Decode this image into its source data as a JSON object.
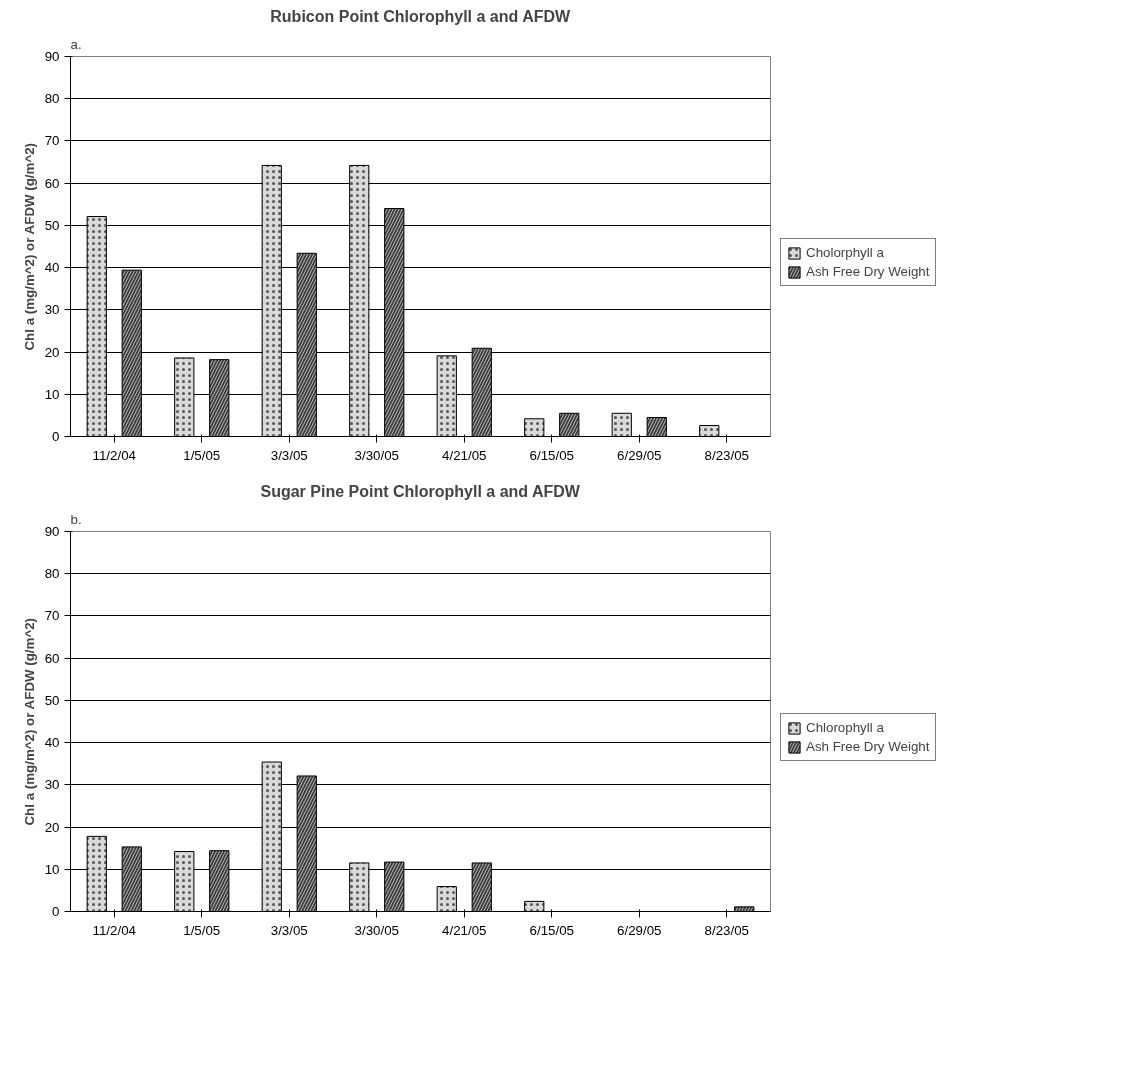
{
  "chart_data": [
    {
      "type": "bar",
      "title": "Rubicon Point Chlorophyll a and AFDW",
      "ylabel": "Chl a (mg/m^2) or AFDW (g/m^2)",
      "annotations": [
        "a."
      ],
      "categories": [
        "11/2/04",
        "1/5/05",
        "3/3/05",
        "3/30/05",
        "4/21/05",
        "6/15/05",
        "6/29/05",
        "8/23/05"
      ],
      "series": [
        {
          "name": "Cholorphyll a",
          "color": "#d9d9d9",
          "values": [
            52.1,
            18.6,
            64.2,
            64.2,
            19.1,
            4.2,
            5.5,
            2.6
          ]
        },
        {
          "name": "Ash Free Dry Weight",
          "color": "#404040",
          "values": [
            39.4,
            18.2,
            43.4,
            54.0,
            20.9,
            5.5,
            4.5,
            null
          ]
        }
      ],
      "ylim": [
        0,
        90
      ],
      "yticks": [
        0,
        10,
        20,
        30,
        40,
        50,
        60,
        70,
        80,
        90
      ],
      "grid": "y",
      "legend": "right"
    },
    {
      "type": "bar",
      "title": "Sugar Pine Point Chlorophyll a and AFDW",
      "ylabel": "Chl a (mg/m^2) or AFDW (g/m^2)",
      "annotations": [
        "b."
      ],
      "categories": [
        "11/2/04",
        "1/5/05",
        "3/3/05",
        "3/30/05",
        "4/21/05",
        "6/15/05",
        "6/29/05",
        "8/23/05"
      ],
      "series": [
        {
          "name": "Chlorophyll a",
          "color": "#d9d9d9",
          "values": [
            17.8,
            14.2,
            35.4,
            11.5,
            5.9,
            2.4,
            null,
            null
          ]
        },
        {
          "name": "Ash Free Dry Weight",
          "color": "#404040",
          "values": [
            15.3,
            14.4,
            32.1,
            11.7,
            11.5,
            null,
            null,
            1.1
          ]
        }
      ],
      "ylim": [
        0,
        90
      ],
      "yticks": [
        0,
        10,
        20,
        30,
        40,
        50,
        60,
        70,
        80,
        90
      ],
      "grid": "y",
      "legend": "right"
    }
  ]
}
